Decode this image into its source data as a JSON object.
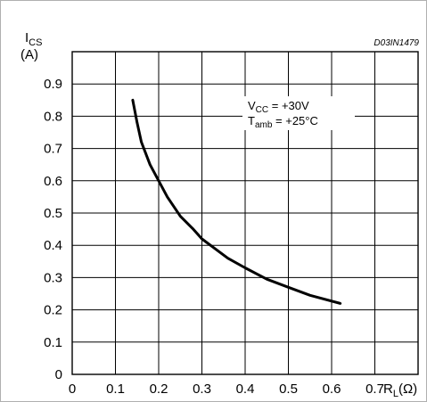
{
  "chart_data": {
    "type": "line",
    "title": "",
    "figure_code": "D03IN1479",
    "ylabel": {
      "main": "I",
      "sub": "CS",
      "unit": "(A)"
    },
    "xlabel": {
      "main": "R",
      "sub": "L",
      "unit": "(Ω)"
    },
    "xlim": [
      0,
      0.8
    ],
    "ylim": [
      0,
      1.0
    ],
    "xticks": [
      "0",
      "0.1",
      "0.2",
      "0.3",
      "0.4",
      "0.5",
      "0.6",
      "0.7"
    ],
    "yticks": [
      "0",
      "0.1",
      "0.2",
      "0.3",
      "0.4",
      "0.5",
      "0.6",
      "0.7",
      "0.8",
      "0.9"
    ],
    "x_step": 0.1,
    "y_step": 0.1,
    "grid": true,
    "annotation": {
      "line1": {
        "prefix": "V",
        "sub": "CC",
        "suffix": " = +30V"
      },
      "line2": {
        "prefix": "T",
        "sub": "amb",
        "suffix": " = +25°C"
      }
    },
    "series": [
      {
        "x": [
          0.14,
          0.15,
          0.16,
          0.18,
          0.2,
          0.22,
          0.25,
          0.28,
          0.3,
          0.33,
          0.36,
          0.4,
          0.45,
          0.5,
          0.55,
          0.62
        ],
        "y": [
          0.85,
          0.78,
          0.72,
          0.65,
          0.6,
          0.55,
          0.49,
          0.45,
          0.42,
          0.39,
          0.36,
          0.33,
          0.295,
          0.27,
          0.245,
          0.22
        ]
      }
    ]
  }
}
